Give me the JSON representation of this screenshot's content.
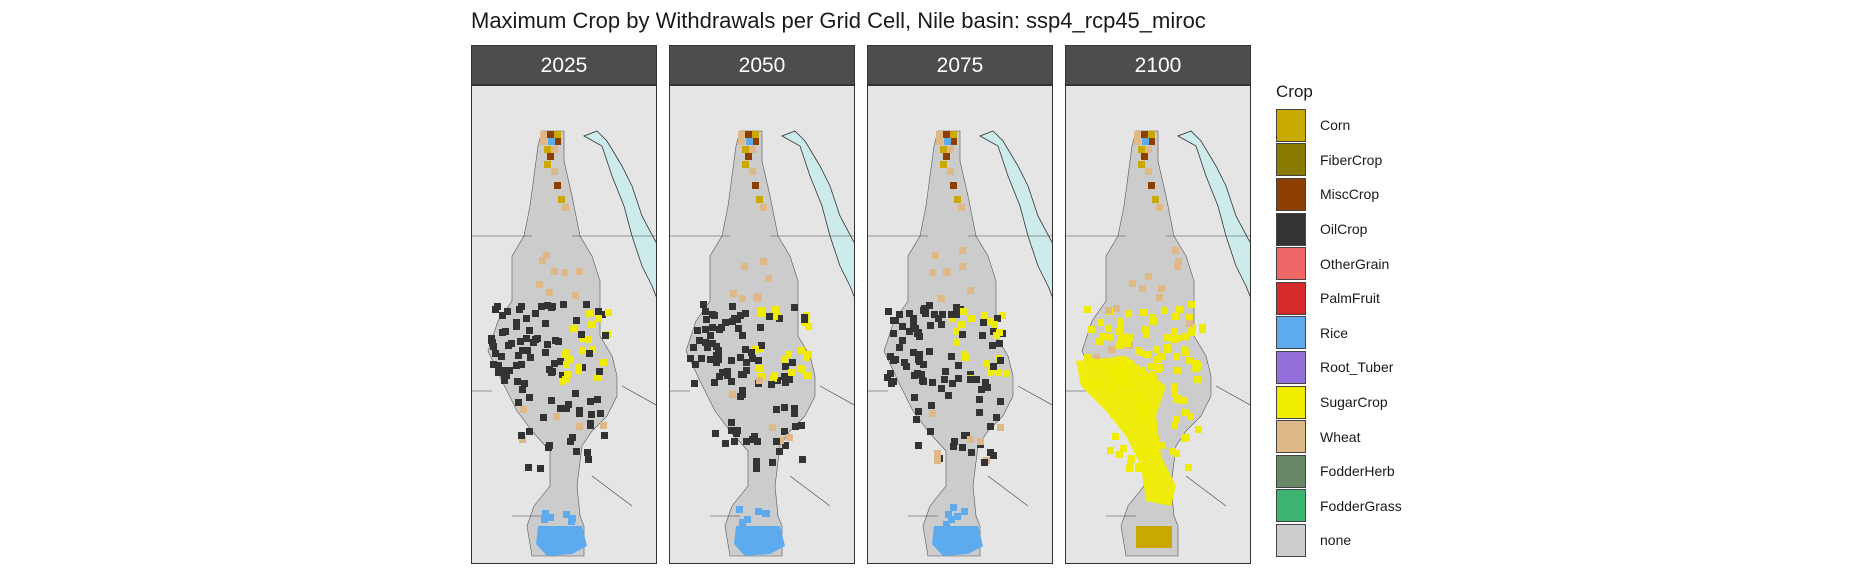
{
  "title": "Maximum Crop by Withdrawals per Grid Cell, Nile basin: ssp4_rcp45_miroc",
  "panels": [
    {
      "year": "2025"
    },
    {
      "year": "2050"
    },
    {
      "year": "2075"
    },
    {
      "year": "2100"
    }
  ],
  "legend": {
    "title": "Crop",
    "items": [
      {
        "label": "Corn",
        "color": "#C9A800"
      },
      {
        "label": "FiberCrop",
        "color": "#8A7A00"
      },
      {
        "label": "MiscCrop",
        "color": "#8C3F00"
      },
      {
        "label": "OilCrop",
        "color": "#333333"
      },
      {
        "label": "OtherGrain",
        "color": "#EF6666"
      },
      {
        "label": "PalmFruit",
        "color": "#D42A2A"
      },
      {
        "label": "Rice",
        "color": "#5EAAEE"
      },
      {
        "label": "Root_Tuber",
        "color": "#9370DB"
      },
      {
        "label": "SugarCrop",
        "color": "#F0EC00"
      },
      {
        "label": "Wheat",
        "color": "#DEB887"
      },
      {
        "label": "FodderHerb",
        "color": "#668866"
      },
      {
        "label": "FodderGrass",
        "color": "#3CB371"
      },
      {
        "label": "none",
        "color": "#CCCCCC"
      }
    ]
  },
  "colors": {
    "background": "#E5E5E5",
    "sea": "#CDEBEB",
    "basin_none": "#CCCCCC",
    "strip": "#4D4D4D"
  }
}
